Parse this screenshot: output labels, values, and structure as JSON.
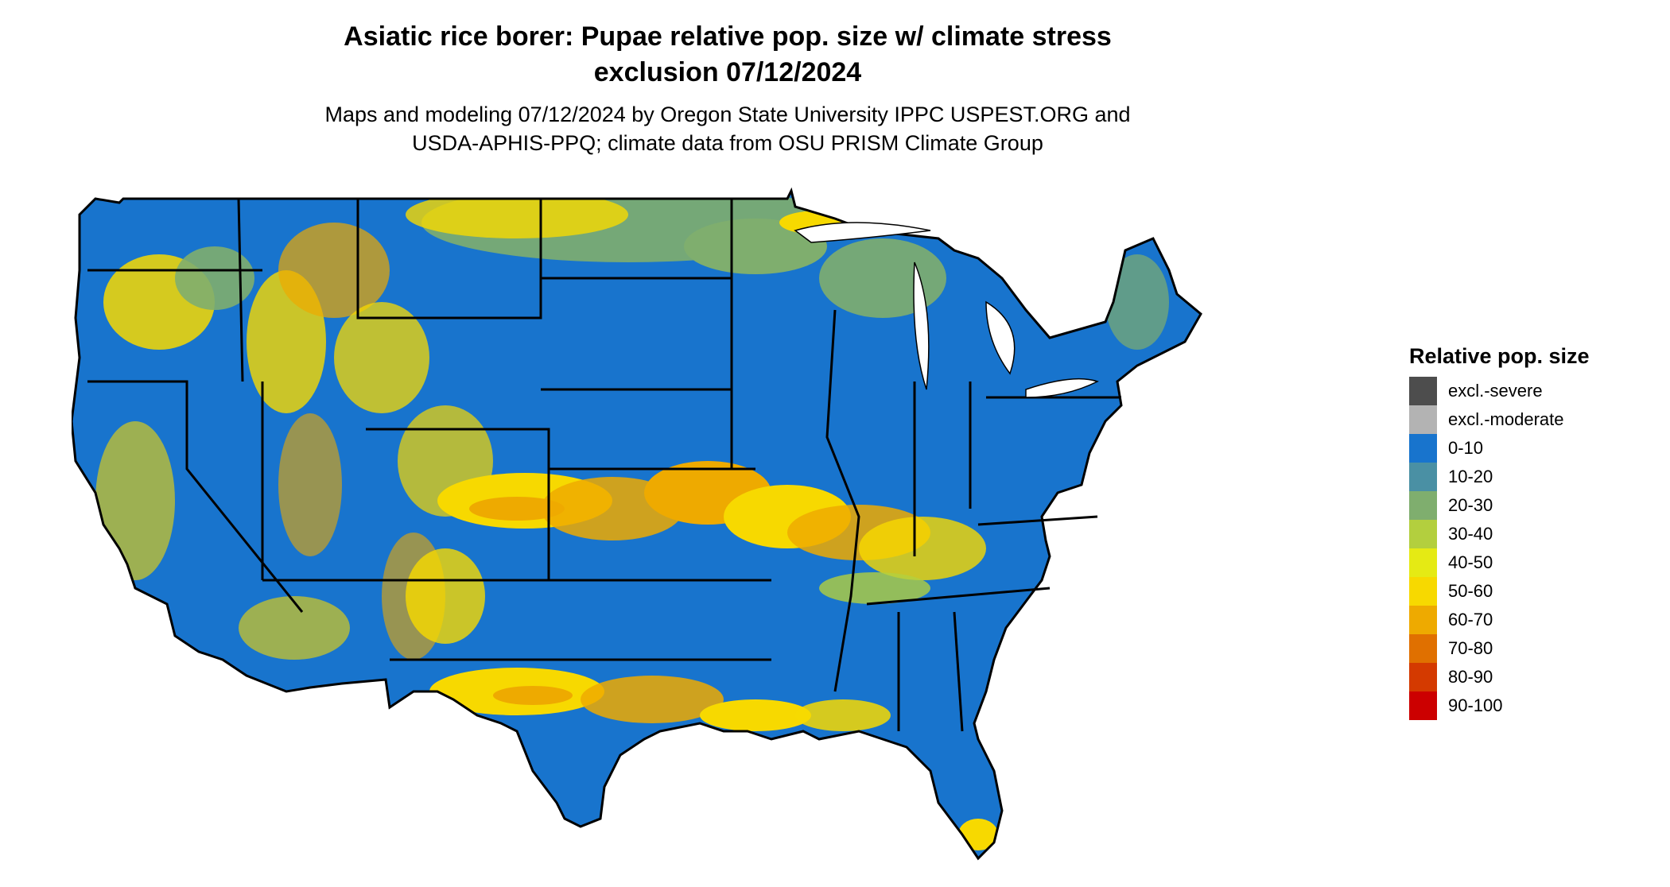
{
  "header": {
    "title_line1": "Asiatic rice borer: Pupae relative pop. size w/ climate stress",
    "title_line2": "exclusion 07/12/2024",
    "subtitle_line1": "Maps and modeling 07/12/2024 by Oregon State University IPPC USPEST.ORG and",
    "subtitle_line2": "USDA-APHIS-PPQ; climate data from OSU PRISM Climate Group"
  },
  "legend": {
    "title": "Relative pop. size",
    "items": [
      {
        "label": "excl.-severe",
        "color": "#4d4d4d"
      },
      {
        "label": "excl.-moderate",
        "color": "#b3b3b3"
      },
      {
        "label": "0-10",
        "color": "#1874cd"
      },
      {
        "label": "10-20",
        "color": "#4a90a4"
      },
      {
        "label": "20-30",
        "color": "#7fae6e"
      },
      {
        "label": "30-40",
        "color": "#b3cf3e"
      },
      {
        "label": "40-50",
        "color": "#e5ea14"
      },
      {
        "label": "50-60",
        "color": "#f7d900"
      },
      {
        "label": "60-70",
        "color": "#eeaa00"
      },
      {
        "label": "70-80",
        "color": "#e07000"
      },
      {
        "label": "80-90",
        "color": "#d43a00"
      },
      {
        "label": "90-100",
        "color": "#cc0000"
      }
    ]
  },
  "map": {
    "region": "Contiguous United States",
    "base_color": "#1874cd",
    "border_color": "#000000"
  }
}
